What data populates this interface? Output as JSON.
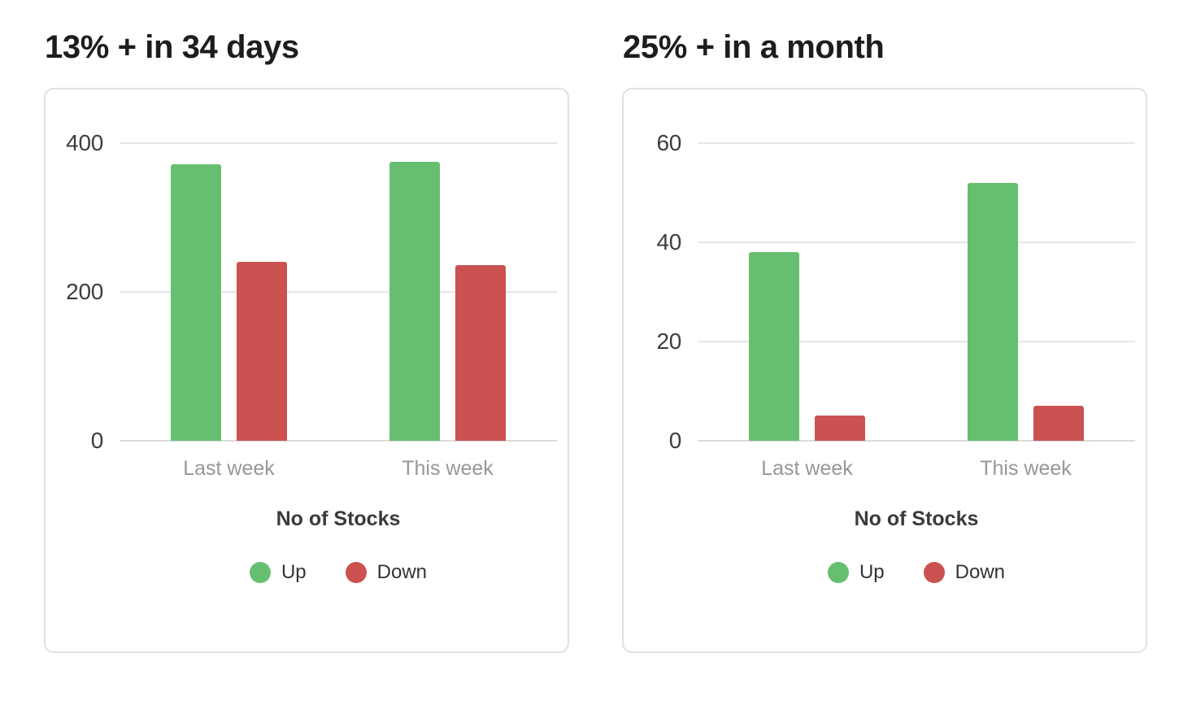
{
  "chart_data": [
    {
      "type": "bar",
      "title": "13% + in 34 days",
      "xlabel": "No of Stocks",
      "categories": [
        "Last week",
        "This week"
      ],
      "yticks": [
        0,
        200,
        400
      ],
      "ylim": [
        0,
        400
      ],
      "grid": true,
      "legend_position": "bottom",
      "series": [
        {
          "name": "Up",
          "color": "#66bf70",
          "values": [
            372,
            375
          ]
        },
        {
          "name": "Down",
          "color": "#cb5250",
          "values": [
            240,
            236
          ]
        }
      ]
    },
    {
      "type": "bar",
      "title": "25% + in a month",
      "xlabel": "No of Stocks",
      "categories": [
        "Last week",
        "This week"
      ],
      "yticks": [
        0,
        20,
        40,
        60
      ],
      "ylim": [
        0,
        60
      ],
      "grid": true,
      "legend_position": "bottom",
      "series": [
        {
          "name": "Up",
          "color": "#66bf70",
          "values": [
            38,
            52
          ]
        },
        {
          "name": "Down",
          "color": "#cb5250",
          "values": [
            5,
            7
          ]
        }
      ]
    }
  ]
}
